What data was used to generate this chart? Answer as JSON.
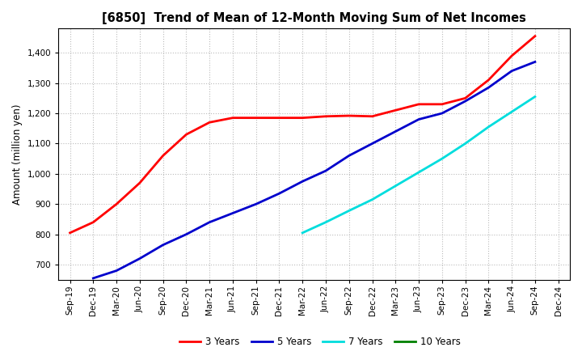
{
  "title": "[6850]  Trend of Mean of 12-Month Moving Sum of Net Incomes",
  "ylabel": "Amount (million yen)",
  "background_color": "#ffffff",
  "grid_color": "#bbbbbb",
  "ylim": [
    650,
    1480
  ],
  "yticks": [
    700,
    800,
    900,
    1000,
    1100,
    1200,
    1300,
    1400
  ],
  "series": {
    "3 Years": {
      "color": "#ff0000",
      "data": [
        [
          "Sep-19",
          805
        ],
        [
          "Dec-19",
          840
        ],
        [
          "Mar-20",
          900
        ],
        [
          "Jun-20",
          970
        ],
        [
          "Sep-20",
          1060
        ],
        [
          "Dec-20",
          1130
        ],
        [
          "Mar-21",
          1170
        ],
        [
          "Jun-21",
          1185
        ],
        [
          "Sep-21",
          1185
        ],
        [
          "Dec-21",
          1185
        ],
        [
          "Mar-22",
          1185
        ],
        [
          "Jun-22",
          1190
        ],
        [
          "Sep-22",
          1192
        ],
        [
          "Dec-22",
          1190
        ],
        [
          "Mar-23",
          1210
        ],
        [
          "Jun-23",
          1230
        ],
        [
          "Sep-23",
          1230
        ],
        [
          "Dec-23",
          1250
        ],
        [
          "Mar-24",
          1310
        ],
        [
          "Jun-24",
          1390
        ],
        [
          "Sep-24",
          1455
        ]
      ]
    },
    "5 Years": {
      "color": "#0000cc",
      "data": [
        [
          "Dec-19",
          655
        ],
        [
          "Mar-20",
          680
        ],
        [
          "Jun-20",
          720
        ],
        [
          "Sep-20",
          765
        ],
        [
          "Dec-20",
          800
        ],
        [
          "Mar-21",
          840
        ],
        [
          "Jun-21",
          870
        ],
        [
          "Sep-21",
          900
        ],
        [
          "Dec-21",
          935
        ],
        [
          "Mar-22",
          975
        ],
        [
          "Jun-22",
          1010
        ],
        [
          "Sep-22",
          1060
        ],
        [
          "Dec-22",
          1100
        ],
        [
          "Mar-23",
          1140
        ],
        [
          "Jun-23",
          1180
        ],
        [
          "Sep-23",
          1200
        ],
        [
          "Dec-23",
          1240
        ],
        [
          "Mar-24",
          1285
        ],
        [
          "Jun-24",
          1340
        ],
        [
          "Sep-24",
          1370
        ]
      ]
    },
    "7 Years": {
      "color": "#00dddd",
      "data": [
        [
          "Mar-22",
          805
        ],
        [
          "Jun-22",
          840
        ],
        [
          "Sep-22",
          878
        ],
        [
          "Dec-22",
          915
        ],
        [
          "Mar-23",
          960
        ],
        [
          "Jun-23",
          1005
        ],
        [
          "Sep-23",
          1050
        ],
        [
          "Dec-23",
          1100
        ],
        [
          "Mar-24",
          1155
        ],
        [
          "Jun-24",
          1205
        ],
        [
          "Sep-24",
          1255
        ]
      ]
    },
    "10 Years": {
      "color": "#008000",
      "data": []
    }
  },
  "xtick_labels": [
    "Sep-19",
    "Dec-19",
    "Mar-20",
    "Jun-20",
    "Sep-20",
    "Dec-20",
    "Mar-21",
    "Jun-21",
    "Sep-21",
    "Dec-21",
    "Mar-22",
    "Jun-22",
    "Sep-22",
    "Dec-22",
    "Mar-23",
    "Jun-23",
    "Sep-23",
    "Dec-23",
    "Mar-24",
    "Jun-24",
    "Sep-24",
    "Dec-24"
  ],
  "legend_labels": [
    "3 Years",
    "5 Years",
    "7 Years",
    "10 Years"
  ],
  "legend_colors": [
    "#ff0000",
    "#0000cc",
    "#00dddd",
    "#008000"
  ]
}
